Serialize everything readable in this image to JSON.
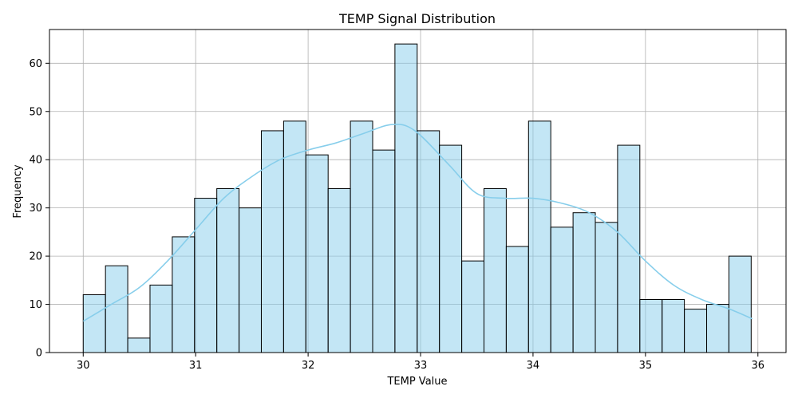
{
  "chart_data": {
    "type": "bar",
    "title": "TEMP Signal Distribution",
    "xlabel": "TEMP Value",
    "ylabel": "Frequency",
    "xlim": [
      29.7,
      36.25
    ],
    "ylim": [
      0,
      67
    ],
    "xticks": [
      30,
      31,
      32,
      33,
      34,
      35,
      36
    ],
    "yticks": [
      0,
      10,
      20,
      30,
      40,
      50,
      60
    ],
    "grid": true,
    "bin_start": 30.0,
    "bin_width": 0.198,
    "values": [
      12,
      18,
      3,
      14,
      24,
      32,
      34,
      30,
      46,
      48,
      41,
      34,
      48,
      42,
      64,
      46,
      43,
      19,
      34,
      22,
      48,
      26,
      29,
      27,
      43,
      11,
      11,
      9,
      10,
      20
    ],
    "bar_color": "#87ceeb",
    "bar_edge_color": "#000000",
    "kde": {
      "color": "#87ceeb",
      "x": [
        30.0,
        30.25,
        30.5,
        30.75,
        31.0,
        31.25,
        31.5,
        31.75,
        32.0,
        32.25,
        32.5,
        32.75,
        32.95,
        33.25,
        33.5,
        33.75,
        34.0,
        34.25,
        34.5,
        34.75,
        35.0,
        35.25,
        35.5,
        35.75,
        35.95
      ],
      "y": [
        6.5,
        10,
        13.5,
        19,
        25.5,
        32,
        36.5,
        40,
        42,
        43.5,
        45.5,
        47.3,
        46,
        39,
        33,
        32,
        32,
        31,
        29,
        25,
        19,
        14,
        11,
        9,
        7
      ]
    }
  }
}
